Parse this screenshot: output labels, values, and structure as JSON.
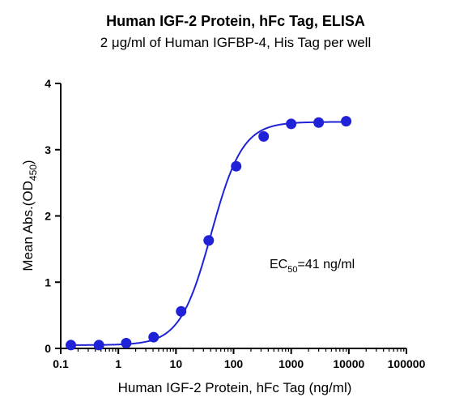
{
  "chart_data": {
    "type": "scatter",
    "title": "Human IGF-2 Protein, hFc Tag, ELISA",
    "subtitle": "2 μg/ml of Human IGFBP-4, His Tag per well",
    "xlabel": "Human IGF-2 Protein, hFc Tag (ng/ml)",
    "ylabel": {
      "main": "Mean Abs.(OD",
      "sub": "450",
      "end": ")"
    },
    "x_scale": "log",
    "xlim": [
      0.1,
      100000
    ],
    "ylim": [
      0,
      4
    ],
    "x_ticks": [
      "0.1",
      "1",
      "10",
      "100",
      "1000",
      "10000",
      "100000"
    ],
    "y_ticks": [
      "0",
      "1",
      "2",
      "3",
      "4"
    ],
    "grid": false,
    "annotation": {
      "main": "EC",
      "sub": "50",
      "rest": "=41 ng/ml"
    },
    "color": "#1f22d6",
    "series": [
      {
        "x": [
          0.15,
          0.46,
          1.37,
          4.1,
          12.3,
          37,
          111,
          333,
          1000,
          3000,
          9000
        ],
        "y": [
          0.05,
          0.05,
          0.08,
          0.17,
          0.56,
          1.63,
          2.75,
          3.2,
          3.39,
          3.41,
          3.43
        ]
      }
    ],
    "fit": {
      "bottom": 0.05,
      "top": 3.42,
      "ec50": 41,
      "hill": 1.6
    }
  }
}
